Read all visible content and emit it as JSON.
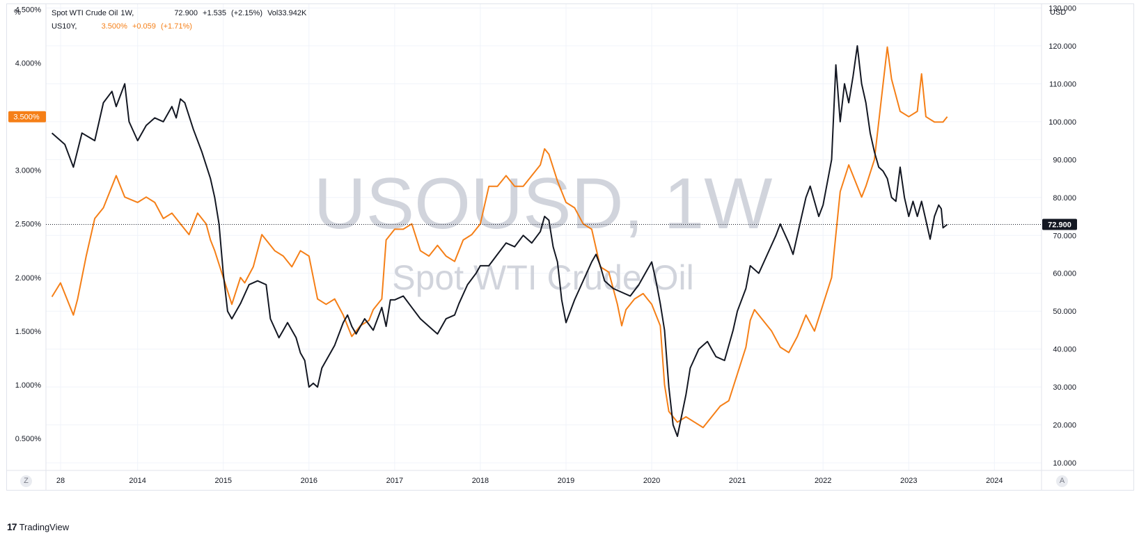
{
  "legend": {
    "main": {
      "name": "Spot WTI Crude Oil",
      "interval": "1W,",
      "price": "72.900",
      "change": "+1.535",
      "change_pct": "(+2.15%)",
      "volume_label": "Vol",
      "volume": "33.942K"
    },
    "compare": {
      "name": "US10Y,",
      "value": "3.500%",
      "change": "+0.059",
      "change_pct": "(+1.71%)"
    }
  },
  "left_unit": "%",
  "right_unit": "USD",
  "watermark": {
    "symbol": "USOUSD, 1W",
    "description": "Spot WTI Crude Oil"
  },
  "buttons": {
    "left": "Z",
    "right": "A"
  },
  "branding": {
    "name": "TradingView"
  },
  "colors": {
    "oil": "#131722",
    "yield": "#f57f17",
    "grid": "#f0f3fa"
  },
  "chart_data": {
    "type": "line",
    "x_ticks": [
      "28",
      "2014",
      "2015",
      "2016",
      "2017",
      "2018",
      "2019",
      "2020",
      "2021",
      "2022",
      "2023",
      "2024"
    ],
    "left_axis": {
      "unit": "%",
      "ticks": [
        "4.500%",
        "4.000%",
        "3.500%",
        "3.000%",
        "2.500%",
        "2.000%",
        "1.500%",
        "1.000%",
        "0.500%"
      ],
      "ylim": [
        0.2,
        4.55
      ]
    },
    "right_axis": {
      "unit": "USD",
      "ticks": [
        "130.000",
        "120.000",
        "110.000",
        "100.000",
        "90.000",
        "80.000",
        "70.000",
        "60.000",
        "50.000",
        "40.000",
        "30.000",
        "20.000",
        "10.000"
      ],
      "ylim": [
        8,
        131
      ]
    },
    "last_value_labels": {
      "left": "3.500%",
      "right": "72.900"
    },
    "series": [
      {
        "name": "Spot WTI Crude Oil",
        "axis": "right",
        "points": [
          [
            2013.0,
            97
          ],
          [
            2013.15,
            94
          ],
          [
            2013.25,
            88
          ],
          [
            2013.35,
            97
          ],
          [
            2013.5,
            95
          ],
          [
            2013.6,
            105
          ],
          [
            2013.7,
            108
          ],
          [
            2013.75,
            104
          ],
          [
            2013.85,
            110
          ],
          [
            2013.9,
            100
          ],
          [
            2014.0,
            95
          ],
          [
            2014.1,
            99
          ],
          [
            2014.2,
            101
          ],
          [
            2014.3,
            100
          ],
          [
            2014.4,
            104
          ],
          [
            2014.45,
            101
          ],
          [
            2014.5,
            106
          ],
          [
            2014.55,
            105
          ],
          [
            2014.65,
            98
          ],
          [
            2014.75,
            92
          ],
          [
            2014.85,
            85
          ],
          [
            2014.9,
            80
          ],
          [
            2014.95,
            73
          ],
          [
            2015.0,
            60
          ],
          [
            2015.05,
            50
          ],
          [
            2015.1,
            48
          ],
          [
            2015.2,
            52
          ],
          [
            2015.3,
            57
          ],
          [
            2015.4,
            58
          ],
          [
            2015.5,
            57
          ],
          [
            2015.55,
            48
          ],
          [
            2015.65,
            43
          ],
          [
            2015.7,
            45
          ],
          [
            2015.75,
            47
          ],
          [
            2015.85,
            43
          ],
          [
            2015.9,
            39
          ],
          [
            2015.95,
            37
          ],
          [
            2016.0,
            30
          ],
          [
            2016.05,
            31
          ],
          [
            2016.1,
            30
          ],
          [
            2016.15,
            35
          ],
          [
            2016.25,
            39
          ],
          [
            2016.3,
            41
          ],
          [
            2016.4,
            47
          ],
          [
            2016.45,
            49
          ],
          [
            2016.5,
            46
          ],
          [
            2016.55,
            44
          ],
          [
            2016.65,
            48
          ],
          [
            2016.75,
            45
          ],
          [
            2016.85,
            51
          ],
          [
            2016.9,
            46
          ],
          [
            2016.95,
            53
          ],
          [
            2017.0,
            53
          ],
          [
            2017.1,
            54
          ],
          [
            2017.2,
            51
          ],
          [
            2017.3,
            48
          ],
          [
            2017.45,
            45
          ],
          [
            2017.5,
            44
          ],
          [
            2017.6,
            48
          ],
          [
            2017.7,
            49
          ],
          [
            2017.75,
            52
          ],
          [
            2017.85,
            57
          ],
          [
            2017.95,
            60
          ],
          [
            2018.0,
            62
          ],
          [
            2018.1,
            62
          ],
          [
            2018.2,
            65
          ],
          [
            2018.3,
            68
          ],
          [
            2018.4,
            67
          ],
          [
            2018.5,
            70
          ],
          [
            2018.6,
            68
          ],
          [
            2018.7,
            71
          ],
          [
            2018.75,
            75
          ],
          [
            2018.8,
            74
          ],
          [
            2018.85,
            67
          ],
          [
            2018.9,
            63
          ],
          [
            2018.95,
            53
          ],
          [
            2019.0,
            47
          ],
          [
            2019.1,
            53
          ],
          [
            2019.2,
            58
          ],
          [
            2019.3,
            63
          ],
          [
            2019.35,
            65
          ],
          [
            2019.4,
            62
          ],
          [
            2019.45,
            58
          ],
          [
            2019.55,
            56
          ],
          [
            2019.65,
            55
          ],
          [
            2019.75,
            54
          ],
          [
            2019.85,
            57
          ],
          [
            2019.95,
            61
          ],
          [
            2020.0,
            63
          ],
          [
            2020.05,
            58
          ],
          [
            2020.1,
            52
          ],
          [
            2020.15,
            45
          ],
          [
            2020.2,
            30
          ],
          [
            2020.25,
            20
          ],
          [
            2020.3,
            17
          ],
          [
            2020.4,
            28
          ],
          [
            2020.45,
            35
          ],
          [
            2020.55,
            40
          ],
          [
            2020.65,
            42
          ],
          [
            2020.7,
            40
          ],
          [
            2020.75,
            38
          ],
          [
            2020.85,
            37
          ],
          [
            2020.95,
            45
          ],
          [
            2021.0,
            50
          ],
          [
            2021.1,
            56
          ],
          [
            2021.15,
            62
          ],
          [
            2021.25,
            60
          ],
          [
            2021.35,
            65
          ],
          [
            2021.45,
            70
          ],
          [
            2021.5,
            73
          ],
          [
            2021.6,
            68
          ],
          [
            2021.65,
            65
          ],
          [
            2021.75,
            75
          ],
          [
            2021.8,
            80
          ],
          [
            2021.85,
            83
          ],
          [
            2021.95,
            75
          ],
          [
            2022.0,
            78
          ],
          [
            2022.1,
            90
          ],
          [
            2022.15,
            115
          ],
          [
            2022.2,
            100
          ],
          [
            2022.25,
            110
          ],
          [
            2022.3,
            105
          ],
          [
            2022.35,
            112
          ],
          [
            2022.4,
            120
          ],
          [
            2022.45,
            110
          ],
          [
            2022.5,
            105
          ],
          [
            2022.55,
            97
          ],
          [
            2022.6,
            92
          ],
          [
            2022.65,
            88
          ],
          [
            2022.7,
            87
          ],
          [
            2022.75,
            85
          ],
          [
            2022.8,
            80
          ],
          [
            2022.85,
            79
          ],
          [
            2022.9,
            88
          ],
          [
            2022.95,
            80
          ],
          [
            2023.0,
            75
          ],
          [
            2023.05,
            79
          ],
          [
            2023.1,
            75
          ],
          [
            2023.15,
            79
          ],
          [
            2023.2,
            74
          ],
          [
            2023.25,
            69
          ],
          [
            2023.3,
            75
          ],
          [
            2023.35,
            78
          ],
          [
            2023.38,
            77
          ],
          [
            2023.4,
            72
          ],
          [
            2023.45,
            72.9
          ]
        ]
      },
      {
        "name": "US10Y",
        "axis": "left",
        "points": [
          [
            2013.0,
            1.82
          ],
          [
            2013.1,
            1.95
          ],
          [
            2013.25,
            1.65
          ],
          [
            2013.3,
            1.8
          ],
          [
            2013.4,
            2.2
          ],
          [
            2013.5,
            2.55
          ],
          [
            2013.6,
            2.65
          ],
          [
            2013.7,
            2.85
          ],
          [
            2013.75,
            2.95
          ],
          [
            2013.85,
            2.75
          ],
          [
            2014.0,
            2.7
          ],
          [
            2014.1,
            2.75
          ],
          [
            2014.2,
            2.7
          ],
          [
            2014.3,
            2.55
          ],
          [
            2014.4,
            2.6
          ],
          [
            2014.5,
            2.5
          ],
          [
            2014.6,
            2.4
          ],
          [
            2014.7,
            2.6
          ],
          [
            2014.8,
            2.5
          ],
          [
            2014.85,
            2.35
          ],
          [
            2014.9,
            2.25
          ],
          [
            2015.0,
            2.0
          ],
          [
            2015.1,
            1.75
          ],
          [
            2015.2,
            2.0
          ],
          [
            2015.25,
            1.95
          ],
          [
            2015.35,
            2.1
          ],
          [
            2015.45,
            2.4
          ],
          [
            2015.5,
            2.35
          ],
          [
            2015.6,
            2.25
          ],
          [
            2015.7,
            2.2
          ],
          [
            2015.8,
            2.1
          ],
          [
            2015.9,
            2.25
          ],
          [
            2016.0,
            2.2
          ],
          [
            2016.1,
            1.8
          ],
          [
            2016.2,
            1.75
          ],
          [
            2016.3,
            1.8
          ],
          [
            2016.4,
            1.65
          ],
          [
            2016.5,
            1.45
          ],
          [
            2016.6,
            1.55
          ],
          [
            2016.7,
            1.6
          ],
          [
            2016.75,
            1.7
          ],
          [
            2016.85,
            1.8
          ],
          [
            2016.9,
            2.35
          ],
          [
            2017.0,
            2.45
          ],
          [
            2017.1,
            2.45
          ],
          [
            2017.2,
            2.5
          ],
          [
            2017.3,
            2.25
          ],
          [
            2017.4,
            2.2
          ],
          [
            2017.5,
            2.3
          ],
          [
            2017.6,
            2.2
          ],
          [
            2017.7,
            2.15
          ],
          [
            2017.8,
            2.35
          ],
          [
            2017.9,
            2.4
          ],
          [
            2018.0,
            2.5
          ],
          [
            2018.1,
            2.85
          ],
          [
            2018.2,
            2.85
          ],
          [
            2018.3,
            2.95
          ],
          [
            2018.4,
            2.85
          ],
          [
            2018.5,
            2.85
          ],
          [
            2018.6,
            2.95
          ],
          [
            2018.7,
            3.05
          ],
          [
            2018.75,
            3.2
          ],
          [
            2018.8,
            3.15
          ],
          [
            2018.9,
            2.9
          ],
          [
            2019.0,
            2.7
          ],
          [
            2019.1,
            2.65
          ],
          [
            2019.2,
            2.5
          ],
          [
            2019.3,
            2.45
          ],
          [
            2019.4,
            2.1
          ],
          [
            2019.5,
            2.05
          ],
          [
            2019.6,
            1.75
          ],
          [
            2019.65,
            1.55
          ],
          [
            2019.7,
            1.7
          ],
          [
            2019.8,
            1.8
          ],
          [
            2019.9,
            1.85
          ],
          [
            2019.95,
            1.8
          ],
          [
            2020.0,
            1.75
          ],
          [
            2020.1,
            1.55
          ],
          [
            2020.15,
            1.0
          ],
          [
            2020.2,
            0.75
          ],
          [
            2020.3,
            0.65
          ],
          [
            2020.4,
            0.7
          ],
          [
            2020.5,
            0.65
          ],
          [
            2020.6,
            0.6
          ],
          [
            2020.7,
            0.7
          ],
          [
            2020.8,
            0.8
          ],
          [
            2020.9,
            0.85
          ],
          [
            2021.0,
            1.1
          ],
          [
            2021.1,
            1.35
          ],
          [
            2021.15,
            1.6
          ],
          [
            2021.2,
            1.7
          ],
          [
            2021.3,
            1.6
          ],
          [
            2021.4,
            1.5
          ],
          [
            2021.5,
            1.35
          ],
          [
            2021.6,
            1.3
          ],
          [
            2021.7,
            1.45
          ],
          [
            2021.8,
            1.65
          ],
          [
            2021.9,
            1.5
          ],
          [
            2022.0,
            1.75
          ],
          [
            2022.1,
            2.0
          ],
          [
            2022.15,
            2.4
          ],
          [
            2022.2,
            2.8
          ],
          [
            2022.3,
            3.05
          ],
          [
            2022.35,
            2.95
          ],
          [
            2022.45,
            2.75
          ],
          [
            2022.5,
            2.85
          ],
          [
            2022.6,
            3.1
          ],
          [
            2022.7,
            3.8
          ],
          [
            2022.75,
            4.15
          ],
          [
            2022.8,
            3.85
          ],
          [
            2022.9,
            3.55
          ],
          [
            2023.0,
            3.5
          ],
          [
            2023.1,
            3.55
          ],
          [
            2023.15,
            3.9
          ],
          [
            2023.2,
            3.5
          ],
          [
            2023.3,
            3.45
          ],
          [
            2023.4,
            3.45
          ],
          [
            2023.45,
            3.5
          ]
        ]
      }
    ]
  }
}
